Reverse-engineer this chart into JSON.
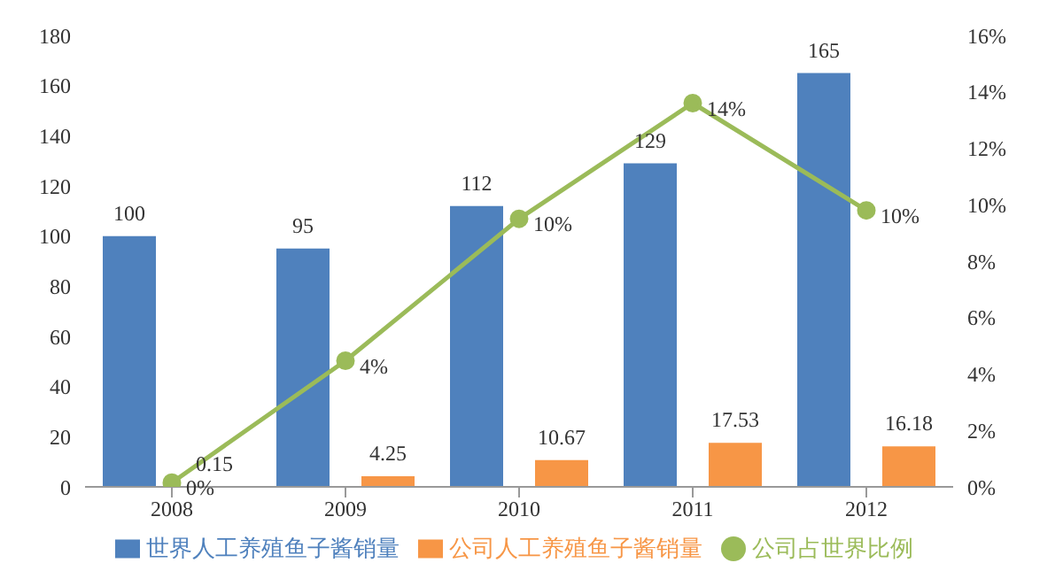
{
  "chart_data": {
    "type": "bar",
    "categories": [
      "2008",
      "2009",
      "2010",
      "2011",
      "2012"
    ],
    "series": [
      {
        "name": "世界人工养殖鱼子酱销量",
        "color": "#4f81bd",
        "values": [
          100,
          95,
          112,
          129,
          165
        ],
        "value_labels": [
          "100",
          "95",
          "112",
          "129",
          "165"
        ]
      },
      {
        "name": "公司人工养殖鱼子酱销量",
        "color": "#f79646",
        "values": [
          0.15,
          4.25,
          10.67,
          17.53,
          16.18
        ],
        "value_labels": [
          "0.15",
          "4.25",
          "10.67",
          "17.53",
          "16.18"
        ]
      },
      {
        "name": "公司占世界比例",
        "type": "line",
        "axis": "y2",
        "color": "#9bbb59",
        "values": [
          0.15,
          4.47,
          9.5,
          13.6,
          9.8
        ],
        "value_labels": [
          "0%",
          "4%",
          "10%",
          "14%",
          "10%"
        ]
      }
    ],
    "ylim": [
      0,
      180
    ],
    "yticks": [
      0,
      20,
      40,
      60,
      80,
      100,
      120,
      140,
      160,
      180
    ],
    "y2lim": [
      0,
      16
    ],
    "y2ticks": [
      {
        "value": 0,
        "label": "0%"
      },
      {
        "value": 2,
        "label": "2%"
      },
      {
        "value": 4,
        "label": "4%"
      },
      {
        "value": 6,
        "label": "6%"
      },
      {
        "value": 8,
        "label": "8%"
      },
      {
        "value": 10,
        "label": "10%"
      },
      {
        "value": 12,
        "label": "12%"
      },
      {
        "value": 14,
        "label": "14%"
      },
      {
        "value": 16,
        "label": "16%"
      }
    ],
    "grid": false,
    "legend": "bottom",
    "marker": "circle",
    "line_style": "solid"
  }
}
